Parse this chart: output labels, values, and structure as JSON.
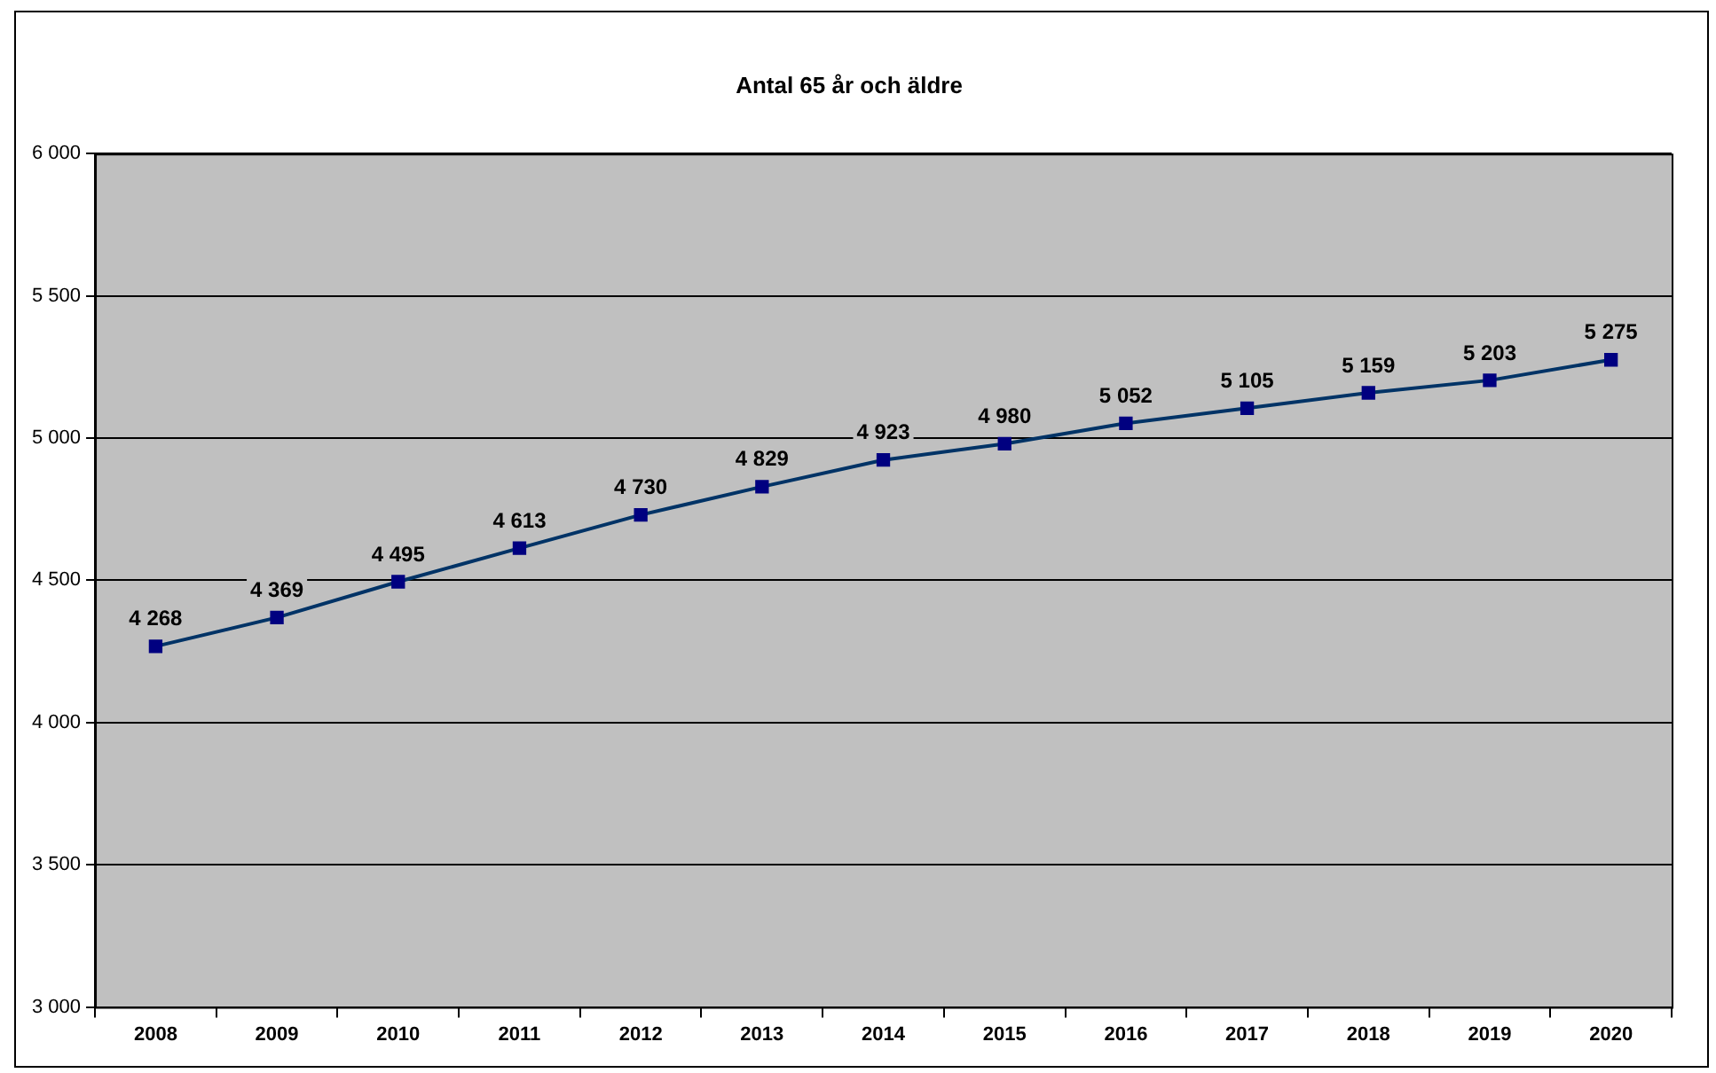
{
  "chart_data": {
    "type": "line",
    "title": "Antal 65 år och äldre",
    "categories": [
      "2008",
      "2009",
      "2010",
      "2011",
      "2012",
      "2013",
      "2014",
      "2015",
      "2016",
      "2017",
      "2018",
      "2019",
      "2020"
    ],
    "series": [
      {
        "color": "#003366",
        "values": [
          4268,
          4369,
          4495,
          4613,
          4730,
          4829,
          4923,
          4980,
          5052,
          5105,
          5159,
          5203,
          5275
        ],
        "value_labels": [
          "4 268",
          "4 369",
          "4 495",
          "4 613",
          "4 730",
          "4 829",
          "4 923",
          "4 980",
          "5 052",
          "5 105",
          "5 159",
          "5 203",
          "5 275"
        ]
      }
    ],
    "ylim": [
      3000,
      6000
    ],
    "yticks": [
      {
        "value": 3000,
        "label": "3 000"
      },
      {
        "value": 3500,
        "label": "3 500"
      },
      {
        "value": 4000,
        "label": "4 000"
      },
      {
        "value": 4500,
        "label": "4 500"
      },
      {
        "value": 5000,
        "label": "5 000"
      },
      {
        "value": 5500,
        "label": "5 500"
      },
      {
        "value": 6000,
        "label": "6 000"
      }
    ],
    "grid": "y",
    "legend": false,
    "marker": "square",
    "line_style": "solid"
  }
}
